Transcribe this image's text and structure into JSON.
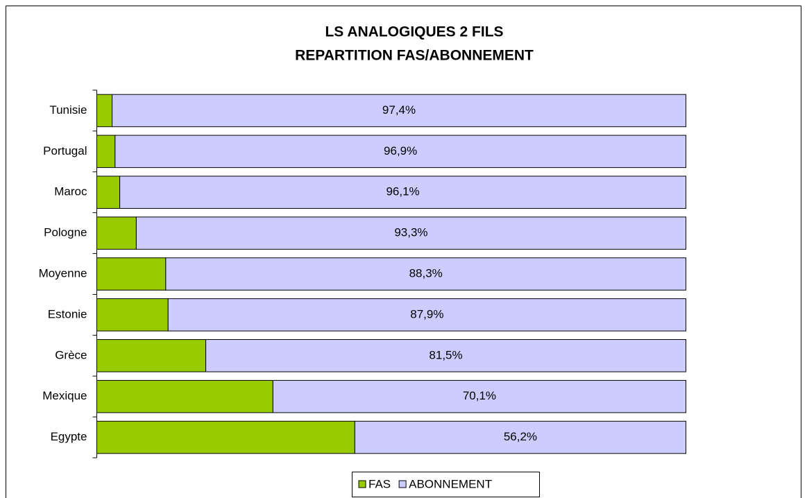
{
  "chart_data": {
    "type": "stacked-bar-horizontal",
    "title": [
      "LS ANALOGIQUES 2 FILS",
      "REPARTITION FAS/ABONNEMENT"
    ],
    "categories": [
      "Tunisie",
      "Portugal",
      "Maroc",
      "Pologne",
      "Moyenne",
      "Estonie",
      "Grèce",
      "Mexique",
      "Egypte"
    ],
    "series": [
      {
        "name": "FAS",
        "color": "#99cc00",
        "values": [
          2.6,
          3.1,
          3.9,
          6.7,
          11.7,
          12.1,
          18.5,
          29.9,
          43.8
        ]
      },
      {
        "name": "ABONNEMENT",
        "color": "#ccccff",
        "values": [
          97.4,
          96.9,
          96.1,
          93.3,
          88.3,
          87.9,
          81.5,
          70.1,
          56.2
        ],
        "value_labels": [
          "97,4%",
          "96,9%",
          "96,1%",
          "93,3%",
          "88,3%",
          "87,9%",
          "81,5%",
          "70,1%",
          "56,2%"
        ]
      }
    ],
    "xlim": [
      0,
      100
    ],
    "legend": "bottom"
  }
}
